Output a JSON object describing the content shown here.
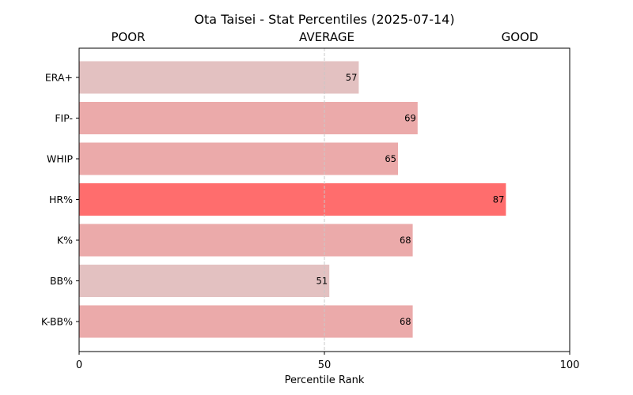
{
  "chart_data": {
    "type": "bar",
    "orientation": "horizontal",
    "title": "Ota Taisei - Stat Percentiles (2025-07-14)",
    "zone_labels": {
      "poor": "POOR",
      "average": "AVERAGE",
      "good": "GOOD"
    },
    "xlabel": "Percentile Rank",
    "ylabel": "",
    "xlim": [
      0,
      100
    ],
    "xticks": [
      0,
      50,
      100
    ],
    "reference_line": 50,
    "grid": false,
    "categories": [
      "ERA+",
      "FIP-",
      "WHIP",
      "HR%",
      "K%",
      "BB%",
      "K-BB%"
    ],
    "values": [
      57,
      69,
      65,
      87,
      68,
      51,
      68
    ],
    "colors": [
      "#e3c1c1",
      "#ebaaaa",
      "#ebaaaa",
      "#ff6d6d",
      "#ebaaaa",
      "#e3c1c1",
      "#ebaaaa"
    ]
  }
}
